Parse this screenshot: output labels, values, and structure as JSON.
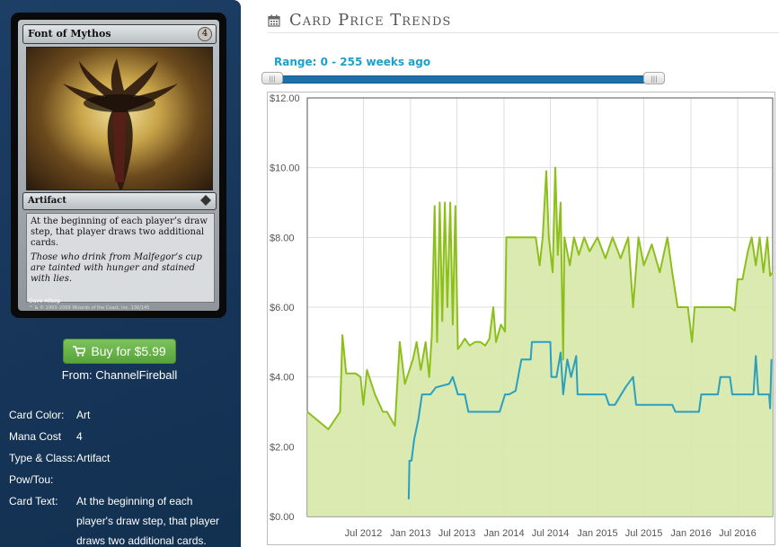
{
  "card": {
    "name": "Font of Mythos",
    "cost": "4",
    "type_line": "Artifact",
    "rules_text": "At the beginning of each player’s draw step, that player draws two additional cards.",
    "flavor_text": "Those who drink from Malfegor’s cup are tainted with hunger and stained with lies.",
    "artist": "Dave Allsop",
    "copyright": "™ & © 1993–2009 Wizards of the Coast, Inc. 136/145"
  },
  "buy": {
    "label": "Buy for $5.99",
    "source": "From: ChannelFireball"
  },
  "details": [
    {
      "label": "Card Color:",
      "value": "Art"
    },
    {
      "label": "Mana Cost",
      "value": "4"
    },
    {
      "label": "Type & Class:",
      "value": "Artifact"
    },
    {
      "label": "Pow/Tou:",
      "value": ""
    },
    {
      "label": "Card Text:",
      "value": "At the beginning of each player's draw step, that player draws two additional cards."
    }
  ],
  "page_title": "Card Price Trends",
  "range_label": "Range: 0 - 255 weeks ago",
  "colors": {
    "green_series": "#8dbf1a",
    "green_fill": "#d6e8a8",
    "blue_series": "#2b9fc0",
    "accent": "#1da0c9"
  },
  "chart_data": {
    "type": "line",
    "ylim": [
      0,
      12
    ],
    "y_ticks": [
      "$0.00",
      "$2.00",
      "$4.00",
      "$6.00",
      "$8.00",
      "$10.00",
      "$12.00"
    ],
    "y_tick_values": [
      0,
      2,
      4,
      6,
      8,
      10,
      12
    ],
    "x_range": [
      "2011-11-25",
      "2016-11-15"
    ],
    "x_ticks": [
      "Jul 2012",
      "Jan 2013",
      "Jul 2013",
      "Jan 2014",
      "Jul 2014",
      "Jan 2015",
      "Jul 2015",
      "Jan 2016",
      "Jul 2016"
    ],
    "x_tick_dates": [
      "2012-07-01",
      "2013-01-01",
      "2013-07-01",
      "2014-01-01",
      "2014-07-01",
      "2015-01-01",
      "2015-07-01",
      "2016-01-01",
      "2016-07-01"
    ],
    "series": [
      {
        "fill": true,
        "points": [
          [
            "2011-11-25",
            3.0
          ],
          [
            "2012-02-15",
            2.5
          ],
          [
            "2012-04-01",
            3.0
          ],
          [
            "2012-04-10",
            5.2
          ],
          [
            "2012-04-25",
            4.1
          ],
          [
            "2012-06-01",
            4.1
          ],
          [
            "2012-06-20",
            4.0
          ],
          [
            "2012-07-01",
            3.2
          ],
          [
            "2012-07-15",
            4.2
          ],
          [
            "2012-08-15",
            3.5
          ],
          [
            "2012-09-15",
            3.0
          ],
          [
            "2012-10-01",
            3.0
          ],
          [
            "2012-11-01",
            2.6
          ],
          [
            "2012-11-20",
            5.0
          ],
          [
            "2012-12-10",
            3.8
          ],
          [
            "2013-01-10",
            4.5
          ],
          [
            "2013-01-25",
            5.0
          ],
          [
            "2013-02-10",
            4.2
          ],
          [
            "2013-03-01",
            5.0
          ],
          [
            "2013-03-15",
            4.0
          ],
          [
            "2013-03-25",
            5.2
          ],
          [
            "2013-04-05",
            8.9
          ],
          [
            "2013-04-15",
            5.0
          ],
          [
            "2013-04-25",
            9.0
          ],
          [
            "2013-05-05",
            5.6
          ],
          [
            "2013-05-15",
            9.0
          ],
          [
            "2013-05-25",
            6.0
          ],
          [
            "2013-06-05",
            9.0
          ],
          [
            "2013-06-15",
            5.5
          ],
          [
            "2013-06-25",
            8.9
          ],
          [
            "2013-07-05",
            4.8
          ],
          [
            "2013-07-15",
            4.9
          ],
          [
            "2013-08-01",
            5.1
          ],
          [
            "2013-08-20",
            4.9
          ],
          [
            "2013-09-10",
            5.0
          ],
          [
            "2013-10-01",
            5.0
          ],
          [
            "2013-10-20",
            4.9
          ],
          [
            "2013-11-05",
            5.1
          ],
          [
            "2013-11-20",
            6.0
          ],
          [
            "2013-12-01",
            5.0
          ],
          [
            "2013-12-20",
            5.5
          ],
          [
            "2014-01-05",
            5.3
          ],
          [
            "2014-01-10",
            8.0
          ],
          [
            "2014-02-01",
            8.0
          ],
          [
            "2014-03-15",
            8.0
          ],
          [
            "2014-04-01",
            8.0
          ],
          [
            "2014-04-20",
            8.0
          ],
          [
            "2014-05-05",
            8.0
          ],
          [
            "2014-05-20",
            7.2
          ],
          [
            "2014-06-01",
            8.0
          ],
          [
            "2014-06-15",
            9.9
          ],
          [
            "2014-06-25",
            8.0
          ],
          [
            "2014-07-10",
            7.0
          ],
          [
            "2014-07-20",
            10.0
          ],
          [
            "2014-07-30",
            7.5
          ],
          [
            "2014-08-10",
            9.0
          ],
          [
            "2014-08-20",
            4.5
          ],
          [
            "2014-08-25",
            8.0
          ],
          [
            "2014-09-15",
            7.2
          ],
          [
            "2014-10-01",
            8.0
          ],
          [
            "2014-10-20",
            7.5
          ],
          [
            "2014-11-10",
            8.0
          ],
          [
            "2014-12-01",
            7.6
          ],
          [
            "2015-01-01",
            8.0
          ],
          [
            "2015-02-01",
            7.4
          ],
          [
            "2015-03-01",
            8.0
          ],
          [
            "2015-04-01",
            7.4
          ],
          [
            "2015-05-01",
            8.0
          ],
          [
            "2015-05-20",
            6.0
          ],
          [
            "2015-06-10",
            8.0
          ],
          [
            "2015-07-01",
            7.2
          ],
          [
            "2015-08-01",
            7.8
          ],
          [
            "2015-09-01",
            7.0
          ],
          [
            "2015-10-01",
            8.0
          ],
          [
            "2015-10-20",
            7.0
          ],
          [
            "2015-11-10",
            6.0
          ],
          [
            "2015-12-20",
            6.0
          ],
          [
            "2016-01-05",
            5.0
          ],
          [
            "2016-01-15",
            6.0
          ],
          [
            "2016-06-01",
            6.0
          ],
          [
            "2016-06-20",
            5.9
          ],
          [
            "2016-07-01",
            6.8
          ],
          [
            "2016-07-20",
            6.8
          ],
          [
            "2016-08-10",
            7.6
          ],
          [
            "2016-08-25",
            8.0
          ],
          [
            "2016-09-10",
            7.2
          ],
          [
            "2016-09-25",
            8.0
          ],
          [
            "2016-10-10",
            7.0
          ],
          [
            "2016-10-25",
            8.0
          ],
          [
            "2016-11-05",
            6.9
          ],
          [
            "2016-11-15",
            7.0
          ]
        ]
      },
      {
        "fill": false,
        "points": [
          [
            "2012-12-25",
            0.5
          ],
          [
            "2012-12-28",
            1.6
          ],
          [
            "2013-01-05",
            1.6
          ],
          [
            "2013-01-15",
            2.2
          ],
          [
            "2013-02-01",
            2.8
          ],
          [
            "2013-02-15",
            3.5
          ],
          [
            "2013-03-20",
            3.5
          ],
          [
            "2013-04-10",
            3.7
          ],
          [
            "2013-06-01",
            3.8
          ],
          [
            "2013-06-15",
            4.0
          ],
          [
            "2013-07-05",
            3.5
          ],
          [
            "2013-08-01",
            3.5
          ],
          [
            "2013-08-15",
            3.0
          ],
          [
            "2013-12-15",
            3.0
          ],
          [
            "2014-01-05",
            3.5
          ],
          [
            "2014-01-20",
            3.5
          ],
          [
            "2014-02-15",
            3.6
          ],
          [
            "2014-03-10",
            4.5
          ],
          [
            "2014-04-15",
            4.5
          ],
          [
            "2014-04-20",
            5.0
          ],
          [
            "2014-06-01",
            5.0
          ],
          [
            "2014-06-15",
            5.0
          ],
          [
            "2014-07-01",
            5.0
          ],
          [
            "2014-07-05",
            4.0
          ],
          [
            "2014-07-25",
            4.0
          ],
          [
            "2014-08-10",
            4.7
          ],
          [
            "2014-08-20",
            3.5
          ],
          [
            "2014-09-05",
            4.5
          ],
          [
            "2014-09-20",
            4.0
          ],
          [
            "2014-10-10",
            4.6
          ],
          [
            "2014-10-15",
            3.5
          ],
          [
            "2014-11-01",
            3.5
          ],
          [
            "2014-12-01",
            3.5
          ],
          [
            "2015-01-01",
            3.5
          ],
          [
            "2015-02-01",
            3.5
          ],
          [
            "2015-02-15",
            3.2
          ],
          [
            "2015-03-10",
            3.2
          ],
          [
            "2015-04-20",
            3.7
          ],
          [
            "2015-05-20",
            4.0
          ],
          [
            "2015-06-01",
            3.2
          ],
          [
            "2015-10-20",
            3.2
          ],
          [
            "2015-11-01",
            3.0
          ],
          [
            "2016-02-01",
            3.0
          ],
          [
            "2016-02-10",
            3.5
          ],
          [
            "2016-04-15",
            3.5
          ],
          [
            "2016-04-25",
            4.0
          ],
          [
            "2016-06-01",
            4.0
          ],
          [
            "2016-06-10",
            3.5
          ],
          [
            "2016-09-01",
            3.5
          ],
          [
            "2016-09-10",
            4.6
          ],
          [
            "2016-09-20",
            3.5
          ],
          [
            "2016-11-01",
            3.5
          ],
          [
            "2016-11-05",
            3.1
          ],
          [
            "2016-11-10",
            4.5
          ]
        ]
      }
    ]
  }
}
